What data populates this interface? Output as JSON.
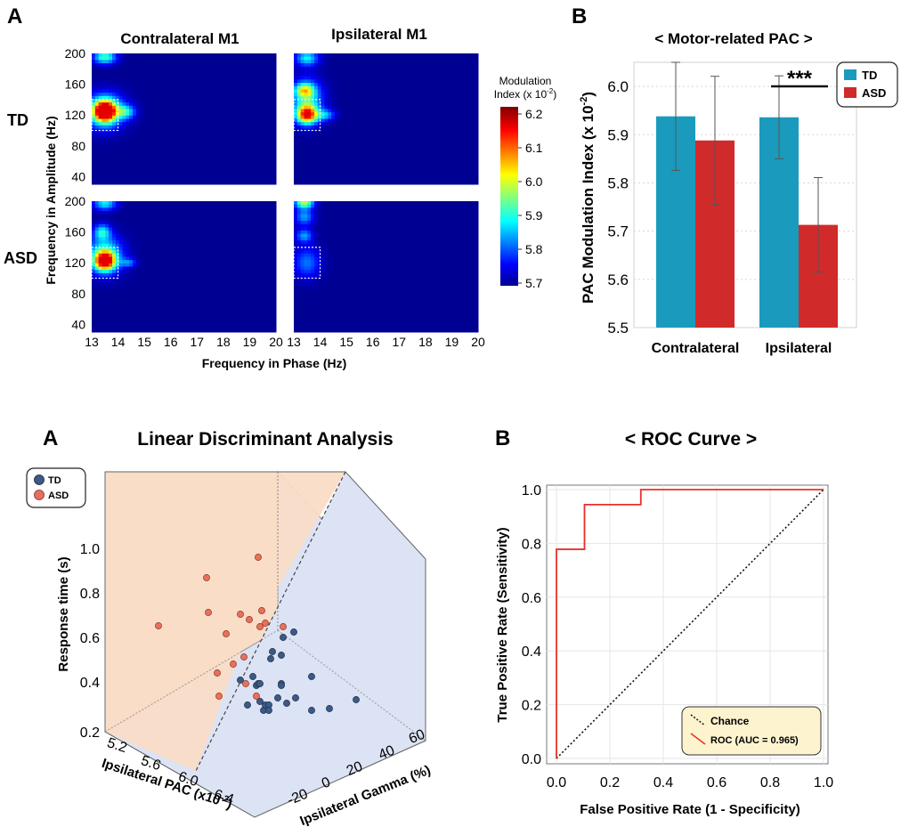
{
  "panels": {
    "top_left_label": "A",
    "top_right_label": "B",
    "bottom_left_label": "A",
    "bottom_right_label": "B"
  },
  "colors": {
    "td": "#1a9bbd",
    "asd": "#d12a2a",
    "td_scatter": "#3b5a86",
    "asd_scatter": "#e8705c",
    "heatmap_bg": "#0a0a8c",
    "roc": "#e8302a"
  },
  "chart_data": [
    {
      "type": "heatmap",
      "col_titles": [
        "Contralateral M1",
        "Ipsilateral M1"
      ],
      "row_labels": [
        "TD",
        "ASD"
      ],
      "xlabel": "Frequency in Phase (Hz)",
      "ylabel": "Frequency in Amplitude (Hz)",
      "x_ticks": [
        "13",
        "14",
        "15",
        "16",
        "17",
        "18",
        "19",
        "20"
      ],
      "y_ticks": [
        "200",
        "160",
        "120",
        "80",
        "40"
      ],
      "xlim": [
        13,
        20
      ],
      "ylim": [
        30,
        200
      ],
      "colorbar": {
        "title_line1": "Modulation",
        "title_line2": "Index (x 10",
        "title_exp": "-2",
        "title_close": ")",
        "ticks": [
          "6.2",
          "6.1",
          "6.0",
          "5.9",
          "5.8",
          "5.7"
        ],
        "range": [
          5.7,
          6.2
        ]
      },
      "roi": {
        "x": [
          13.0,
          14.0
        ],
        "y": [
          100,
          140
        ]
      },
      "blobs": [
        [
          {
            "x": 13.5,
            "y": 125,
            "sx": 0.28,
            "sy": 9,
            "amp": 1.0
          },
          {
            "x": 13.5,
            "y": 125,
            "sx": 0.5,
            "sy": 15,
            "amp": 0.55
          },
          {
            "x": 13.5,
            "y": 195,
            "sx": 0.3,
            "sy": 6,
            "amp": 0.5
          },
          {
            "x": 14.3,
            "y": 124,
            "sx": 0.25,
            "sy": 6,
            "amp": 0.35
          }
        ],
        [
          {
            "x": 13.5,
            "y": 120,
            "sx": 0.28,
            "sy": 8,
            "amp": 0.85
          },
          {
            "x": 13.5,
            "y": 140,
            "sx": 0.4,
            "sy": 18,
            "amp": 0.45
          },
          {
            "x": 13.4,
            "y": 152,
            "sx": 0.25,
            "sy": 6,
            "amp": 0.45
          },
          {
            "x": 13.5,
            "y": 194,
            "sx": 0.3,
            "sy": 7,
            "amp": 0.4
          },
          {
            "x": 14.2,
            "y": 120,
            "sx": 0.25,
            "sy": 5,
            "amp": 0.3
          }
        ],
        [
          {
            "x": 13.5,
            "y": 122,
            "sx": 0.27,
            "sy": 8,
            "amp": 0.9
          },
          {
            "x": 13.5,
            "y": 130,
            "sx": 0.45,
            "sy": 16,
            "amp": 0.5
          },
          {
            "x": 13.4,
            "y": 160,
            "sx": 0.22,
            "sy": 7,
            "amp": 0.38
          },
          {
            "x": 13.5,
            "y": 197,
            "sx": 0.3,
            "sy": 6,
            "amp": 0.4
          },
          {
            "x": 14.4,
            "y": 120,
            "sx": 0.2,
            "sy": 4,
            "amp": 0.25
          }
        ],
        [
          {
            "x": 13.4,
            "y": 198,
            "sx": 0.25,
            "sy": 5,
            "amp": 0.6
          },
          {
            "x": 13.4,
            "y": 180,
            "sx": 0.25,
            "sy": 8,
            "amp": 0.3
          },
          {
            "x": 13.4,
            "y": 155,
            "sx": 0.22,
            "sy": 6,
            "amp": 0.3
          },
          {
            "x": 13.5,
            "y": 120,
            "sx": 0.35,
            "sy": 14,
            "amp": 0.25
          }
        ]
      ]
    },
    {
      "type": "bar",
      "title": "< Motor-related PAC >",
      "ylabel": "PAC Modulation Index (x 10",
      "ylabel_exp": "-2",
      "ylabel_close": ")",
      "categories": [
        "Contralateral",
        "Ipsilateral"
      ],
      "ylim": [
        5.5,
        6.05
      ],
      "y_ticks": [
        "5.5",
        "5.6",
        "5.7",
        "5.8",
        "5.9",
        "6.0"
      ],
      "series": [
        {
          "name": "TD",
          "values": [
            5.938,
            5.936
          ],
          "errors": [
            0.112,
            0.086
          ]
        },
        {
          "name": "ASD",
          "values": [
            5.888,
            5.713
          ],
          "errors": [
            0.133,
            0.098
          ]
        }
      ],
      "significance": "***",
      "legend": "top-right",
      "grid": true
    },
    {
      "type": "scatter",
      "title": "Linear Discriminant Analysis",
      "xlabel": "Ipsilateral PAC (x10",
      "xlabel_exp": "-2",
      "xlabel_close": ")",
      "ylabel": "Response time (s)",
      "zlabel": "Ipsilateral Gamma (%)",
      "x_ticks": [
        "5.2",
        "5.6",
        "6.0",
        "6.4"
      ],
      "y_ticks": [
        "0.2",
        "0.4",
        "0.6",
        "0.8",
        "1.0"
      ],
      "z_ticks": [
        "-20",
        "0",
        "20",
        "40",
        "60"
      ],
      "legend": "top-left",
      "series": [
        {
          "name": "TD",
          "points": [
            [
              270,
              764
            ],
            [
              278,
              792
            ],
            [
              284,
              760
            ],
            [
              288,
              770
            ],
            [
              290,
              768
            ],
            [
              292,
              768
            ],
            [
              292,
              788
            ],
            [
              296,
              798
            ],
            [
              298,
              792
            ],
            [
              302,
              792
            ],
            [
              302,
              798
            ],
            [
              304,
              740
            ],
            [
              306,
              732
            ],
            [
              312,
              784
            ],
            [
              316,
              736
            ],
            [
              316,
              768
            ],
            [
              316,
              770
            ],
            [
              318,
              716
            ],
            [
              322,
              790
            ],
            [
              330,
              710
            ],
            [
              332,
              784
            ],
            [
              350,
              798
            ],
            [
              350,
              760
            ],
            [
              370,
              796
            ],
            [
              400,
              786
            ]
          ]
        },
        {
          "name": "ASD",
          "points": [
            [
              178,
              703
            ],
            [
              232,
              649
            ],
            [
              234,
              688
            ],
            [
              244,
              756
            ],
            [
              246,
              782
            ],
            [
              254,
              712
            ],
            [
              262,
              746
            ],
            [
              270,
              690
            ],
            [
              274,
              738
            ],
            [
              276,
              768
            ],
            [
              280,
              696
            ],
            [
              288,
              782
            ],
            [
              292,
              704
            ],
            [
              294,
              686
            ],
            [
              298,
              700
            ],
            [
              318,
              704
            ],
            [
              290,
              626
            ]
          ]
        }
      ],
      "grid": true
    },
    {
      "type": "line",
      "title": "< ROC Curve >",
      "xlabel": "False Positive Rate (1 - Specificity)",
      "ylabel": "True Positive Rate (Sensitivity)",
      "xlim": [
        0,
        1.0
      ],
      "ylim": [
        0,
        1.0
      ],
      "x_ticks": [
        "0.0",
        "0.2",
        "0.4",
        "0.6",
        "0.8",
        "1.0"
      ],
      "y_ticks": [
        "0.0",
        "0.2",
        "0.4",
        "0.6",
        "0.8",
        "1.0"
      ],
      "series": [
        {
          "name": "Chance",
          "x": [
            0,
            1
          ],
          "y": [
            0,
            1
          ]
        },
        {
          "name": "ROC (AUC = 0.965)",
          "x": [
            0,
            0,
            0.105,
            0.105,
            0.316,
            0.316,
            1.0
          ],
          "y": [
            0,
            0.778,
            0.778,
            0.944,
            0.944,
            1.0,
            1.0
          ]
        }
      ],
      "legend": "bottom-right",
      "grid": true
    }
  ]
}
